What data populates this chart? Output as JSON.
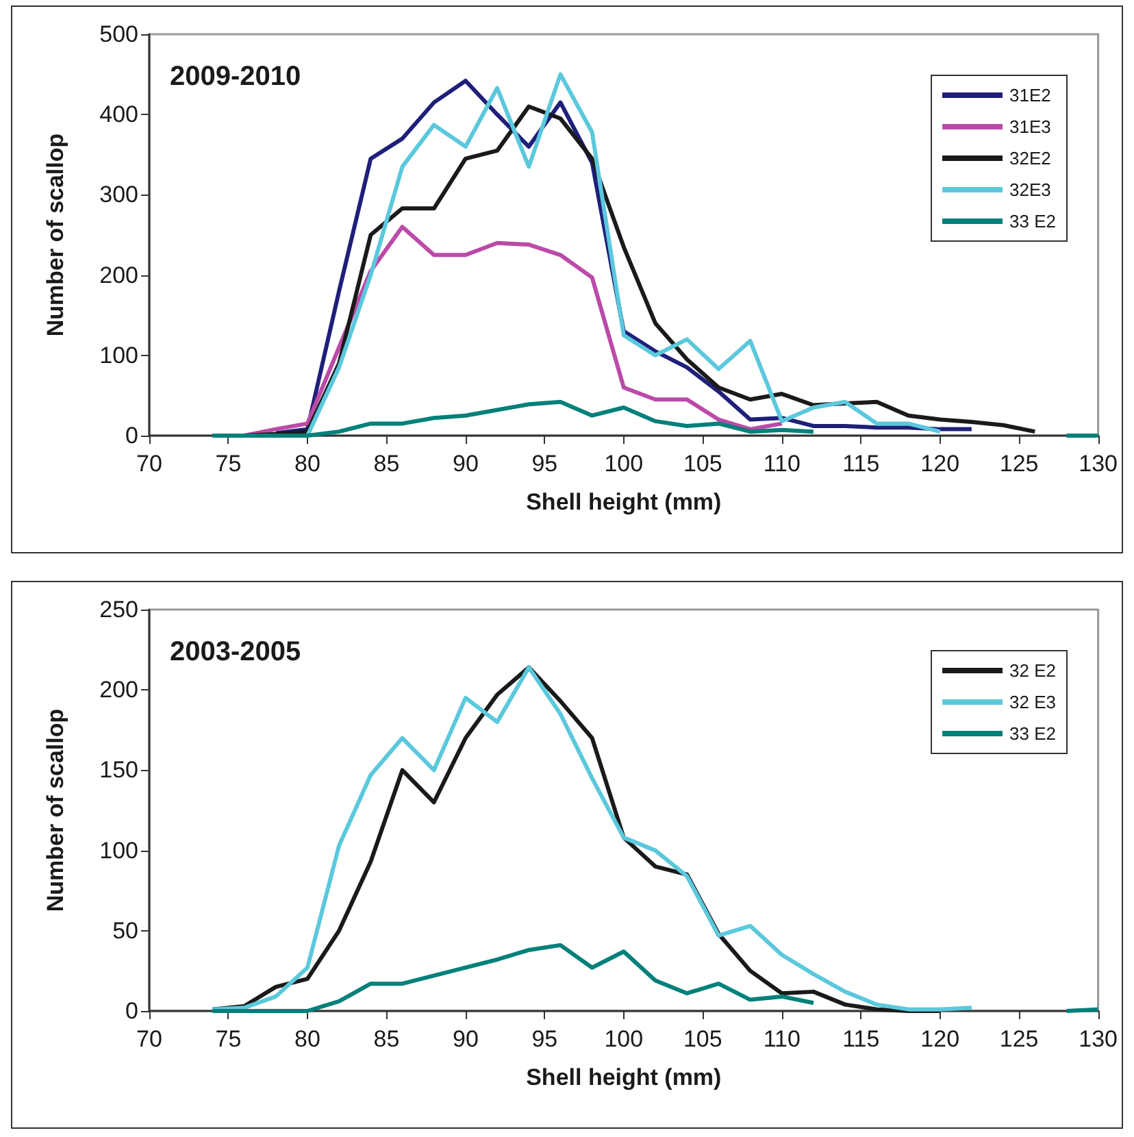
{
  "chart_data": [
    {
      "type": "line",
      "title": "2009-2010",
      "xlabel": "Shell height (mm)",
      "ylabel": "Number of scallop",
      "xlim": [
        70,
        130
      ],
      "xticks": [
        70,
        75,
        80,
        85,
        90,
        95,
        100,
        105,
        110,
        115,
        120,
        125,
        130
      ],
      "ylim": [
        0,
        500
      ],
      "yticks": [
        0,
        100,
        200,
        300,
        400,
        500
      ],
      "grid": false,
      "legend": "top right",
      "marker": "none",
      "line_style": "solid",
      "series": [
        {
          "name": "31E2",
          "color": "#1f1f7a",
          "x": [
            78,
            80,
            82,
            84,
            86,
            88,
            90,
            92,
            94,
            96,
            98,
            100,
            102,
            104,
            106,
            108,
            110,
            112,
            114,
            116,
            118,
            120,
            122
          ],
          "values": [
            3,
            8,
            180,
            345,
            370,
            415,
            442,
            400,
            360,
            415,
            340,
            130,
            105,
            85,
            55,
            20,
            22,
            12,
            12,
            10,
            10,
            8,
            8
          ]
        },
        {
          "name": "31E3",
          "color": "#bb4aa8",
          "x": [
            76,
            78,
            80,
            82,
            84,
            86,
            88,
            90,
            92,
            94,
            96,
            98,
            100,
            102,
            104,
            106,
            108,
            110
          ],
          "values": [
            0,
            8,
            15,
            110,
            205,
            260,
            225,
            225,
            240,
            238,
            225,
            197,
            60,
            45,
            45,
            20,
            8,
            15
          ]
        },
        {
          "name": "32E2",
          "color": "#1a1a1a",
          "x": [
            74,
            76,
            78,
            80,
            82,
            84,
            86,
            88,
            90,
            92,
            94,
            96,
            98,
            100,
            102,
            104,
            106,
            108,
            110,
            112,
            114,
            116,
            118,
            120,
            122,
            124,
            126
          ],
          "values": [
            0,
            0,
            2,
            5,
            90,
            250,
            283,
            283,
            345,
            355,
            410,
            395,
            345,
            235,
            140,
            95,
            60,
            45,
            52,
            38,
            40,
            42,
            25,
            20,
            17,
            13,
            5
          ]
        },
        {
          "name": "32E3",
          "color": "#5bc8dc",
          "x": [
            80,
            82,
            84,
            86,
            88,
            90,
            92,
            94,
            96,
            98,
            100,
            102,
            104,
            106,
            108,
            110,
            112,
            114,
            116,
            118,
            120
          ],
          "values": [
            0,
            85,
            200,
            335,
            387,
            360,
            433,
            335,
            450,
            378,
            125,
            100,
            120,
            83,
            118,
            18,
            35,
            42,
            15,
            15,
            5
          ]
        },
        {
          "name": "33 E2",
          "color": "#00807a",
          "x": [
            74,
            76,
            78,
            80,
            82,
            84,
            86,
            88,
            90,
            92,
            94,
            96,
            98,
            100,
            102,
            104,
            106,
            108,
            110,
            112,
            114,
            128,
            130
          ],
          "values": [
            0,
            0,
            0,
            0,
            5,
            15,
            15,
            22,
            25,
            32,
            39,
            42,
            25,
            35,
            18,
            12,
            15,
            5,
            7,
            5,
            null,
            0,
            0
          ]
        }
      ]
    },
    {
      "type": "line",
      "title": "2003-2005",
      "xlabel": "Shell height (mm)",
      "ylabel": "Number of scallop",
      "xlim": [
        70,
        130
      ],
      "xticks": [
        70,
        75,
        80,
        85,
        90,
        95,
        100,
        105,
        110,
        115,
        120,
        125,
        130
      ],
      "ylim": [
        0,
        250
      ],
      "yticks": [
        0,
        50,
        100,
        150,
        200,
        250
      ],
      "grid": false,
      "legend": "top right",
      "marker": "none",
      "line_style": "solid",
      "series": [
        {
          "name": "32 E2",
          "color": "#1a1a1a",
          "x": [
            74,
            76,
            78,
            80,
            82,
            84,
            86,
            88,
            90,
            92,
            94,
            96,
            98,
            100,
            102,
            104,
            106,
            108,
            110,
            112,
            114,
            116,
            118,
            120
          ],
          "values": [
            1,
            3,
            15,
            20,
            50,
            93,
            150,
            130,
            170,
            197,
            214,
            193,
            170,
            108,
            90,
            85,
            48,
            25,
            11,
            12,
            4,
            1,
            0,
            0
          ]
        },
        {
          "name": "32 E3",
          "color": "#5bc8dc",
          "x": [
            74,
            76,
            78,
            80,
            82,
            84,
            86,
            88,
            90,
            92,
            94,
            96,
            98,
            100,
            102,
            104,
            106,
            108,
            110,
            112,
            114,
            116,
            118,
            120,
            122
          ],
          "values": [
            1,
            2,
            9,
            27,
            103,
            147,
            170,
            150,
            195,
            180,
            214,
            185,
            145,
            108,
            100,
            84,
            47,
            53,
            35,
            23,
            12,
            4,
            1,
            1,
            2
          ]
        },
        {
          "name": "33 E2",
          "color": "#00807a",
          "x": [
            74,
            76,
            78,
            80,
            82,
            84,
            86,
            88,
            90,
            92,
            94,
            96,
            98,
            100,
            102,
            104,
            106,
            108,
            110,
            112,
            114,
            128,
            130
          ],
          "values": [
            0,
            0,
            0,
            0,
            6,
            17,
            17,
            22,
            27,
            32,
            38,
            41,
            27,
            37,
            19,
            11,
            17,
            7,
            9,
            5,
            null,
            0,
            1
          ]
        }
      ]
    }
  ]
}
